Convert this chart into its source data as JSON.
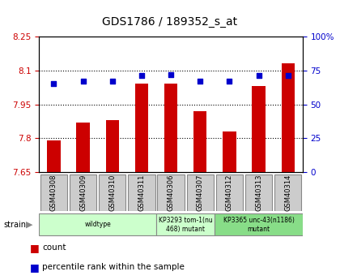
{
  "title": "GDS1786 / 189352_s_at",
  "samples": [
    "GSM40308",
    "GSM40309",
    "GSM40310",
    "GSM40311",
    "GSM40306",
    "GSM40307",
    "GSM40312",
    "GSM40313",
    "GSM40314"
  ],
  "counts": [
    7.79,
    7.87,
    7.88,
    8.04,
    8.04,
    7.92,
    7.83,
    8.03,
    8.13
  ],
  "percentiles": [
    65,
    67,
    67,
    71,
    72,
    67,
    67,
    71,
    71
  ],
  "ylim_left": [
    7.65,
    8.25
  ],
  "ylim_right": [
    0,
    100
  ],
  "yticks_left": [
    7.65,
    7.8,
    7.95,
    8.1,
    8.25
  ],
  "yticks_right": [
    0,
    25,
    50,
    75,
    100
  ],
  "ytick_labels_left": [
    "7.65",
    "7.8",
    "7.95",
    "8.1",
    "8.25"
  ],
  "ytick_labels_right": [
    "0",
    "25",
    "50",
    "75",
    "100%"
  ],
  "bar_color": "#cc0000",
  "dot_color": "#0000cc",
  "bar_bottom": 7.65,
  "group_spans": [
    [
      0,
      3,
      "wildtype",
      "#ccffcc"
    ],
    [
      4,
      5,
      "KP3293 tom-1(nu\n468) mutant",
      "#ccffcc"
    ],
    [
      6,
      8,
      "KP3365 unc-43(n1186)\nmutant",
      "#88dd88"
    ]
  ],
  "grid_color": "#000000",
  "bar_color_legend": "#cc0000",
  "dot_color_legend": "#0000cc",
  "label_count": "count",
  "label_percentile": "percentile rank within the sample",
  "strain_label": "strain",
  "sample_box_color": "#cccccc",
  "title_fontsize": 10,
  "tick_fontsize": 7.5,
  "label_fontsize": 7,
  "sample_fontsize": 6
}
